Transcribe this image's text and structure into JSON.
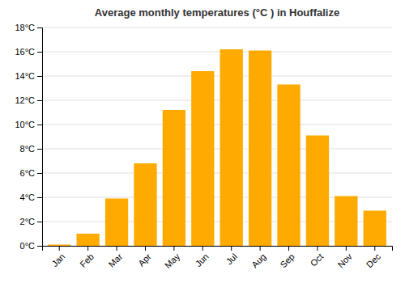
{
  "chart_data": {
    "type": "bar",
    "title": "Average monthly temperatures (°C ) in Houffalize",
    "categories": [
      "Jan",
      "Feb",
      "Mar",
      "Apr",
      "May",
      "Jun",
      "Jul",
      "Aug",
      "Sep",
      "Oct",
      "Nov",
      "Dec"
    ],
    "values": [
      0.1,
      1.0,
      3.9,
      6.8,
      11.2,
      14.4,
      16.2,
      16.1,
      13.3,
      9.1,
      4.1,
      2.9
    ],
    "color": "#FFAA00",
    "ylim": [
      0,
      18
    ],
    "yticks": [
      {
        "value": 0,
        "label": "0°C"
      },
      {
        "value": 2,
        "label": "2°C"
      },
      {
        "value": 4,
        "label": "4°C"
      },
      {
        "value": 6,
        "label": "6°C"
      },
      {
        "value": 8,
        "label": "8°C"
      },
      {
        "value": 10,
        "label": "10°C"
      },
      {
        "value": 12,
        "label": "12°C"
      },
      {
        "value": 14,
        "label": "14°C"
      },
      {
        "value": 16,
        "label": "16°C"
      },
      {
        "value": 18,
        "label": "18°C"
      }
    ],
    "grid": true
  }
}
